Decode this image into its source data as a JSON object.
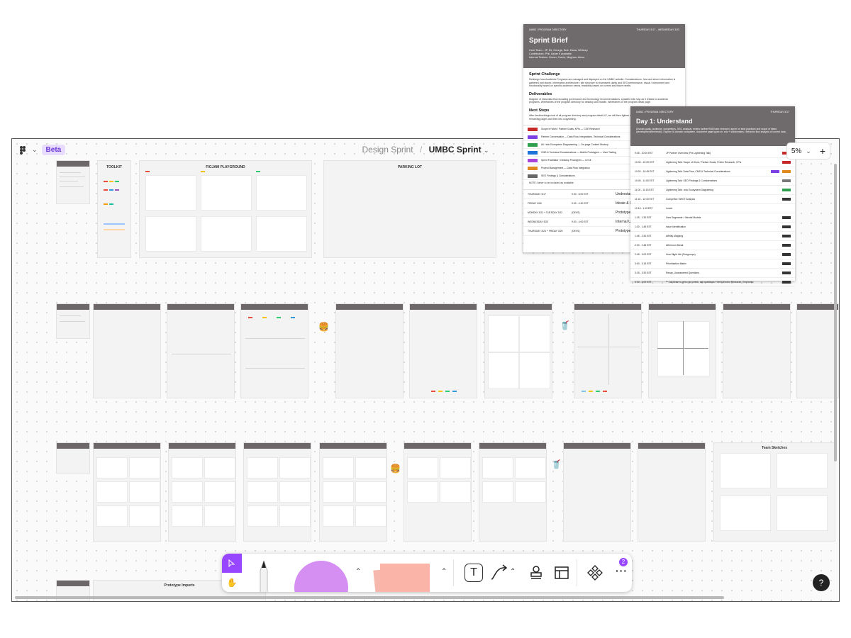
{
  "app": {
    "badge": "Beta",
    "breadcrumb_parent": "Design Sprint",
    "breadcrumb_sep": "/",
    "file_name": "UMBC Sprint",
    "zoom": "5%",
    "zoom_plus": "+",
    "help": "?",
    "notification_count": "2",
    "more": "···"
  },
  "colors": {
    "accent": "#9747ff",
    "header": "#6d6769",
    "beta_bg": "#e7dcfb"
  },
  "boards_row1": {
    "toolkit": "TOOLKIT",
    "figjam_playground": "FIGJAM PLAYGROUND",
    "parking_lot": "PARKING LOT"
  },
  "board_bottom": {
    "prototype_imports": "Prototype Imports"
  },
  "board_team_sketches": "Team Sketches",
  "sprint_brief": {
    "meta_left": "UMBC  /  PROGRAM DIRECTORY",
    "meta_right": "THURSDAY 3/17 – WEDNESDAY 3/23",
    "title": "Sprint Brief",
    "team": "Core Team - JP, Eli, George, Bob, Dana, Whitney",
    "team2": "Contributors: Phil, Asher if available",
    "team3": "Internal Testers: Goran, Carrie, Meghan, Alexa",
    "challenge_heading": "Sprint Challenge",
    "challenge_body": "Redesign how Academic Programs are managed and displayed on the UMBC website. Considerations: how and where information is gathered and stored, information architecture / site structure for increased clarity and SEO performance, visual / component and functionality based on specific audience needs, feasibility based on current and future needs.",
    "deliverables_heading": "Deliverables",
    "deliverables_body": "Diagram of ideal data flow including governance and technology recommendations. Updated site map as it relates to academic programs. Wireframes of the program directory for desktop and mobile. Wireframes of the program detail page.",
    "next_steps_heading": "Next Steps",
    "next_steps_body": "After feedback/approval of all program directory and program detail UX, we will then tighten up the UI for the final content strategy for remaining pages and then into copywriting.",
    "topics": [
      {
        "label": "Scope of Work / Partner Goals, KPIs — CSE Research",
        "color": "#c62828"
      },
      {
        "label": "Partner Conversation — Data Flow, Integrations, Technical Considerations",
        "color": "#7b3fe4"
      },
      {
        "label": "Ali / edu Ecosystem Diagramming — On-page Content Mockup",
        "color": "#2e9e4f"
      },
      {
        "label": "CMS & Technical Considerations — Mobile Prototypes — User Testing",
        "color": "#1e73d8"
      },
      {
        "label": "Sprint Facilitator / Desktop Prototypes — UI Kit",
        "color": "#a845d8"
      },
      {
        "label": "Project Management — Data Flow Integration",
        "color": "#e08a1e"
      },
      {
        "label": "SEO Findings & Considerations",
        "color": "#666666"
      }
    ],
    "note": "NOTE: Asher to be included as available",
    "schedule": [
      {
        "day": "THURSDAY 3/17",
        "time": "9:30 - 5:00 EST",
        "phase": "Understand"
      },
      {
        "day": "FRIDAY 3/18",
        "time": "9:30 - 4:30 EST",
        "phase": "Ideate & Decide"
      },
      {
        "day": "MONDAY 3/21 + TUESDAY 3/22",
        "time": "(DEVS)",
        "phase": "Prototype"
      },
      {
        "day": "WEDNESDAY 3/23",
        "time": "9:30 - 4:00 EST",
        "phase": "Internal User Testing / Debrief"
      },
      {
        "day": "THURSDAY 3/24 + FRIDAY 3/25",
        "time": "(DEVS)",
        "phase": "Prototype Refinements"
      }
    ]
  },
  "day1": {
    "meta_left": "UMBC  /  PROGRAM DIRECTORY",
    "meta_right": "THURSDAY 3/17",
    "title": "Day 1: Understand",
    "intro": "Discuss goals, audience, competitors, SEO analysis, review partner/SME/user research, agree on best practices and scope of ideas (development/threshold). Explore IA domain ecosystem, document page types on .edu + subdomains / behavior flow analysis of current data.",
    "rows": [
      {
        "time": "9:45 - 10:00 EST",
        "text": "JP Partner Overview (Pre-Lightening Talk)",
        "tag": "#c62828",
        "tag2": ""
      },
      {
        "time": "10:00 - 10:20 EST",
        "text": "Lightening Talk: Scope of Work / Partner Goals, Prelim Research, KPIs",
        "tag": "#c62828",
        "tag2": ""
      },
      {
        "time": "10:20 - 10:45 EST",
        "text": "Lightening Talk: Data Flow, CMS & Technical Considerations",
        "tag": "#e08a1e",
        "tag2": "#7b3fe4"
      },
      {
        "time": "10:45 - 11:00 EST",
        "text": "Lightening Talk: SEO Findings & Considerations",
        "tag": "#777777",
        "tag2": ""
      },
      {
        "time": "11:00 - 11:15 EST",
        "text": "Lightening Talk: .edu Ecosystem Diagraming",
        "tag": "#2e9e4f",
        "tag2": ""
      },
      {
        "time": "11:15 - 12:15 EST",
        "text": "Competitor SWOT Analysis",
        "tag": "#333333",
        "tag2": ""
      },
      {
        "time": "12:15 - 1:15 EST",
        "text": "Lunch",
        "tag": "",
        "tag2": ""
      },
      {
        "time": "1:15 - 1:30 EST",
        "text": "User Segments + Mental Models",
        "tag": "#333333",
        "tag2": ""
      },
      {
        "time": "1:30 - 1:45 EST",
        "text": "Issue Identification",
        "tag": "#333333",
        "tag2": ""
      },
      {
        "time": "1:45 - 2:30 EST",
        "text": "Affinity Mapping",
        "tag": "#333333",
        "tag2": ""
      },
      {
        "time": "2:30 - 2:45 EST",
        "text": "Afternoon Break",
        "tag": "#333333",
        "tag2": ""
      },
      {
        "time": "2:45 - 3:00 EST",
        "text": "How Might We (Subgroups)",
        "tag": "#333333",
        "tag2": ""
      },
      {
        "time": "3:00 - 3:15 EST",
        "text": "Prioritization Matrix",
        "tag": "#333333",
        "tag2": ""
      },
      {
        "time": "3:15 - 3:30 EST",
        "text": "Recap, Unanswered Questions",
        "tag": "#333333",
        "tag2": ""
      },
      {
        "time": "3:30 - 4:00 EST",
        "text": "** Call Brian to get a gut check, ask questions? Self Directed Research / Impromtu",
        "tag": "#333333",
        "tag2": ""
      }
    ]
  },
  "tools": {
    "select": "select-tool",
    "hand": "hand-tool",
    "text_tool": "T"
  }
}
